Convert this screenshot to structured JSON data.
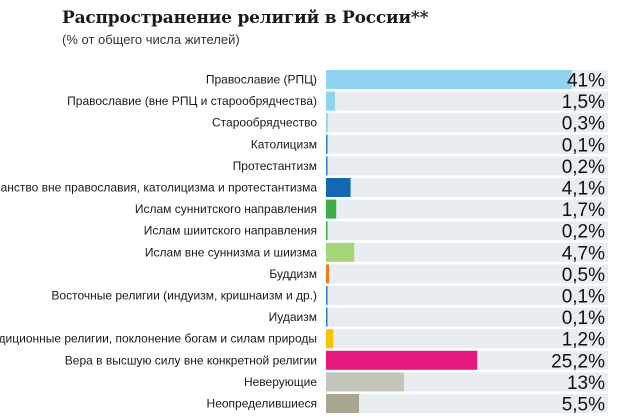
{
  "title": "Распространение религий в России**",
  "subtitle": "(% от общего числа жителей)",
  "chart_data": {
    "type": "bar",
    "orientation": "horizontal",
    "xlim": [
      0,
      47
    ],
    "background_color": "#e7edf1",
    "categories": [
      "Православие (РПЦ)",
      "Православие (вне РПЦ и старообрядчества)",
      "Старообрядчество",
      "Католицизм",
      "Протестантизм",
      "Христианство вне православия, католицизма и протестантизма",
      "Ислам суннитского направления",
      "Ислам шиитского направления",
      "Ислам вне суннизма и шиизма",
      "Буддизм",
      "Восточные религии (индуизм, кришнаизм и др.)",
      "Иудаизм",
      "Традиционные религии, поклонение богам и силам природы",
      "Вера в высшую силу вне конкретной религии",
      "Неверующие",
      "Неопределившиеся"
    ],
    "values": [
      41,
      1.5,
      0.3,
      0.1,
      0.2,
      4.1,
      1.7,
      0.2,
      4.7,
      0.5,
      0.1,
      0.1,
      1.2,
      25.2,
      13,
      5.5
    ],
    "value_labels": [
      "41%",
      "1,5%",
      "0,3%",
      "0,1%",
      "0,2%",
      "4,1%",
      "1,7%",
      "0,2%",
      "4,7%",
      "0,5%",
      "0,1%",
      "0,1%",
      "1,2%",
      "25,2%",
      "13%",
      "5,5%"
    ],
    "colors": [
      "#8fd3f0",
      "#8fd3f0",
      "#8fd3f0",
      "#2a7fc4",
      "#2a7fc4",
      "#1468b3",
      "#3fae49",
      "#3fae49",
      "#a6d47a",
      "#f07a1e",
      "#2a7fc4",
      "#2a7fc4",
      "#f6c400",
      "#e5197e",
      "#c4c6bb",
      "#a8a690"
    ]
  }
}
